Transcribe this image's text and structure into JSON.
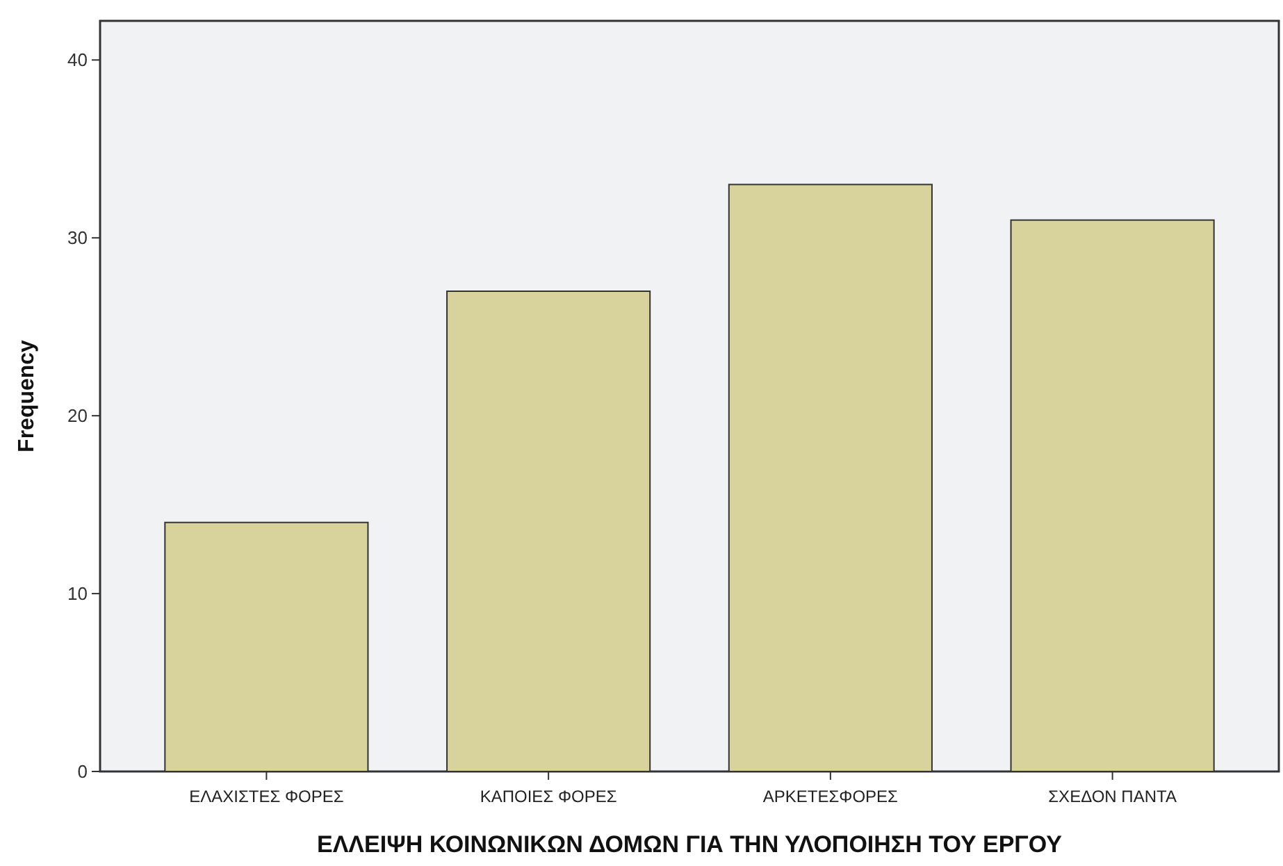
{
  "chart_data": {
    "type": "bar",
    "xlabel": "ΕΛΛΕΙΨΗ ΚΟΙΝΩΝΙΚΩΝ ΔΟΜΩΝ ΓΙΑ ΤΗΝ ΥΛΟΠΟΙΗΣΗ ΤΟΥ ΕΡΓΟΥ",
    "ylabel": "Frequency",
    "categories": [
      "ΕΛΑΧΙΣΤΕΣ ΦΟΡΕΣ",
      "ΚΑΠΟΙΕΣ ΦΟΡΕΣ",
      "ΑΡΚΕΤΕΣΦΟΡΕΣ",
      "ΣΧΕΔΟΝ ΠΑΝΤΑ"
    ],
    "values": [
      14,
      27,
      33,
      31
    ],
    "color": "#d8d29c",
    "ylim": [
      0,
      42.2
    ],
    "yticks": [
      0,
      10,
      20,
      30,
      40
    ],
    "grid": false
  }
}
